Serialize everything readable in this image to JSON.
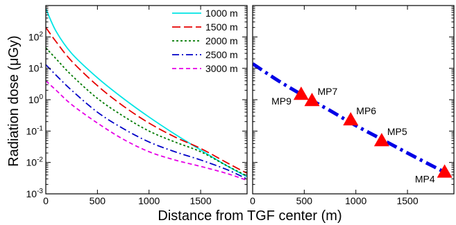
{
  "chart_data": [
    {
      "type": "line",
      "id": "left-panel",
      "ylabel": "Radiation dose (μGy)",
      "xlim": [
        0,
        1950
      ],
      "ylim_log10": [
        -3,
        3
      ],
      "yscale": "log",
      "legend_position": "top-right",
      "x_ticks": [
        0,
        500,
        1000,
        1500
      ],
      "y_ticks": [
        {
          "label": "10",
          "exp": "-3",
          "value": 0.001
        },
        {
          "label": "10",
          "exp": "-2",
          "value": 0.01
        },
        {
          "label": "10",
          "exp": "-1",
          "value": 0.1
        },
        {
          "label": "10",
          "exp": "0",
          "value": 1
        },
        {
          "label": "10",
          "exp": "1",
          "value": 10
        },
        {
          "label": "10",
          "exp": "2",
          "value": 100
        }
      ],
      "series": [
        {
          "name": "1000 m",
          "color": "#00e5e5",
          "dash": "solid",
          "x": [
            0,
            100,
            250,
            500,
            750,
            1000,
            1250,
            1500,
            1750,
            1950
          ],
          "y": [
            800,
            150,
            30,
            5,
            1.1,
            0.28,
            0.08,
            0.025,
            0.008,
            0.0035
          ]
        },
        {
          "name": "1500 m",
          "color": "#e60000",
          "dash": "longdash",
          "x": [
            0,
            100,
            250,
            500,
            750,
            1000,
            1250,
            1500,
            1750,
            1950
          ],
          "y": [
            200,
            70,
            17,
            2.8,
            0.63,
            0.18,
            0.065,
            0.028,
            0.01,
            0.0045
          ]
        },
        {
          "name": "2000 m",
          "color": "#007a00",
          "dash": "dotted",
          "x": [
            0,
            100,
            250,
            500,
            750,
            1000,
            1250,
            1500,
            1750,
            1950
          ],
          "y": [
            45,
            20,
            6,
            1.1,
            0.3,
            0.1,
            0.045,
            0.022,
            0.008,
            0.0037
          ]
        },
        {
          "name": "2500 m",
          "color": "#0000c8",
          "dash": "dashdot",
          "x": [
            0,
            100,
            250,
            500,
            750,
            1000,
            1250,
            1500,
            1750,
            1950
          ],
          "y": [
            13,
            6,
            2,
            0.4,
            0.12,
            0.045,
            0.022,
            0.012,
            0.006,
            0.003
          ]
        },
        {
          "name": "3000 m",
          "color": "#e600e6",
          "dash": "dashed",
          "x": [
            0,
            100,
            250,
            500,
            750,
            1000,
            1250,
            1500,
            1750,
            1950
          ],
          "y": [
            4,
            2,
            0.7,
            0.18,
            0.055,
            0.022,
            0.012,
            0.0075,
            0.0045,
            0.0027
          ]
        }
      ]
    },
    {
      "type": "line",
      "id": "right-panel",
      "xlim": [
        0,
        1950
      ],
      "ylim_log10": [
        -3,
        3
      ],
      "yscale": "log",
      "x_ticks": [
        0,
        500,
        1000,
        1500
      ],
      "series": [
        {
          "color": "#0000e6",
          "dash": "dashdot",
          "x": [
            0,
            250,
            500,
            750,
            1000,
            1250,
            1500,
            1750,
            1900
          ],
          "y": [
            14,
            4,
            1.3,
            0.45,
            0.15,
            0.055,
            0.02,
            0.0075,
            0.0042
          ]
        }
      ],
      "points": [
        {
          "label": "MP9",
          "x": 470,
          "y": 1.5,
          "label_side": "left"
        },
        {
          "label": "MP7",
          "x": 575,
          "y": 0.95,
          "label_side": "above-right"
        },
        {
          "label": "MP6",
          "x": 950,
          "y": 0.23,
          "label_side": "above-right"
        },
        {
          "label": "MP5",
          "x": 1250,
          "y": 0.05,
          "label_side": "above-right"
        },
        {
          "label": "MP4",
          "x": 1860,
          "y": 0.005,
          "label_side": "left"
        }
      ],
      "marker_color": "#ff0000"
    }
  ],
  "xlabel": "Distance from TGF center (m)"
}
